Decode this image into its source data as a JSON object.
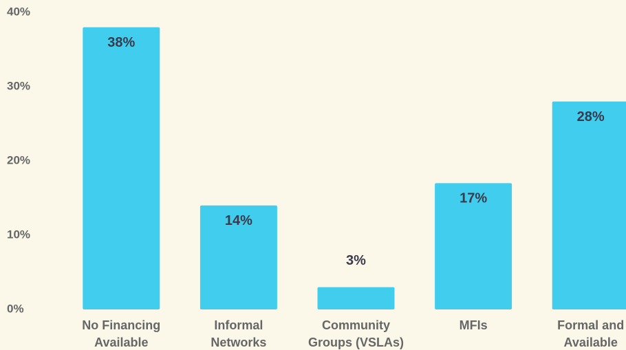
{
  "chart_data": {
    "type": "bar",
    "categories": [
      "No Financing Available",
      "Informal Networks",
      "Community Groups (VSLAs)",
      "MFIs",
      "Formal and Available"
    ],
    "values": [
      38,
      14,
      3,
      17,
      28
    ],
    "value_labels": [
      "38%",
      "14%",
      "3%",
      "17%",
      "28%"
    ],
    "color": "#41cdee",
    "ylim": [
      0,
      40
    ],
    "yticks": [
      {
        "value": 0,
        "label": "0%"
      },
      {
        "value": 10,
        "label": "10%"
      },
      {
        "value": 20,
        "label": "20%"
      },
      {
        "value": 30,
        "label": "30%"
      },
      {
        "value": 40,
        "label": "40%"
      }
    ],
    "grid": false
  }
}
